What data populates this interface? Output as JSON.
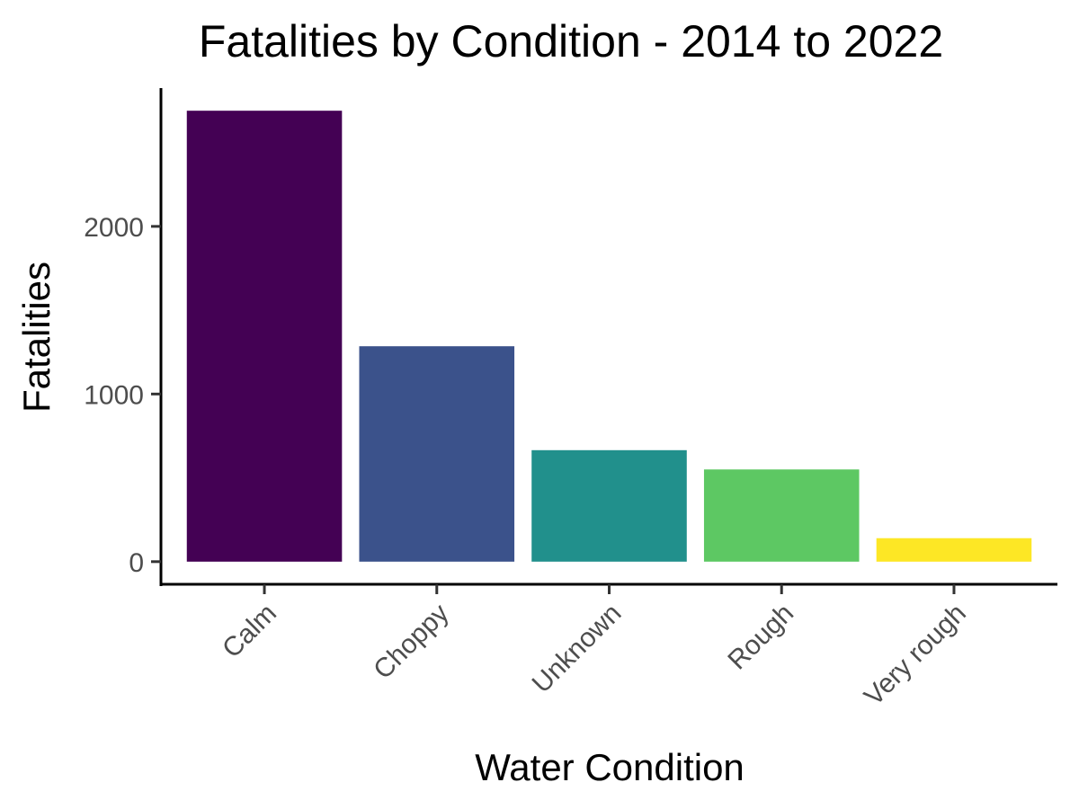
{
  "chart_data": {
    "type": "bar",
    "title": "Fatalities by Condition - 2014 to 2022",
    "xlabel": "Water Condition",
    "ylabel": "Fatalities",
    "categories": [
      "Calm",
      "Choppy",
      "Unknown",
      "Rough",
      "Very rough"
    ],
    "values": [
      2690,
      1285,
      665,
      550,
      140
    ],
    "colors": [
      "#440154",
      "#3b528b",
      "#21908c",
      "#5dc863",
      "#fde725"
    ],
    "yticks": [
      0,
      1000,
      2000
    ],
    "ytick_labels": [
      "0",
      "1000",
      "2000"
    ],
    "ylim": [
      -135,
      2825
    ],
    "grid": false,
    "legend": false
  }
}
